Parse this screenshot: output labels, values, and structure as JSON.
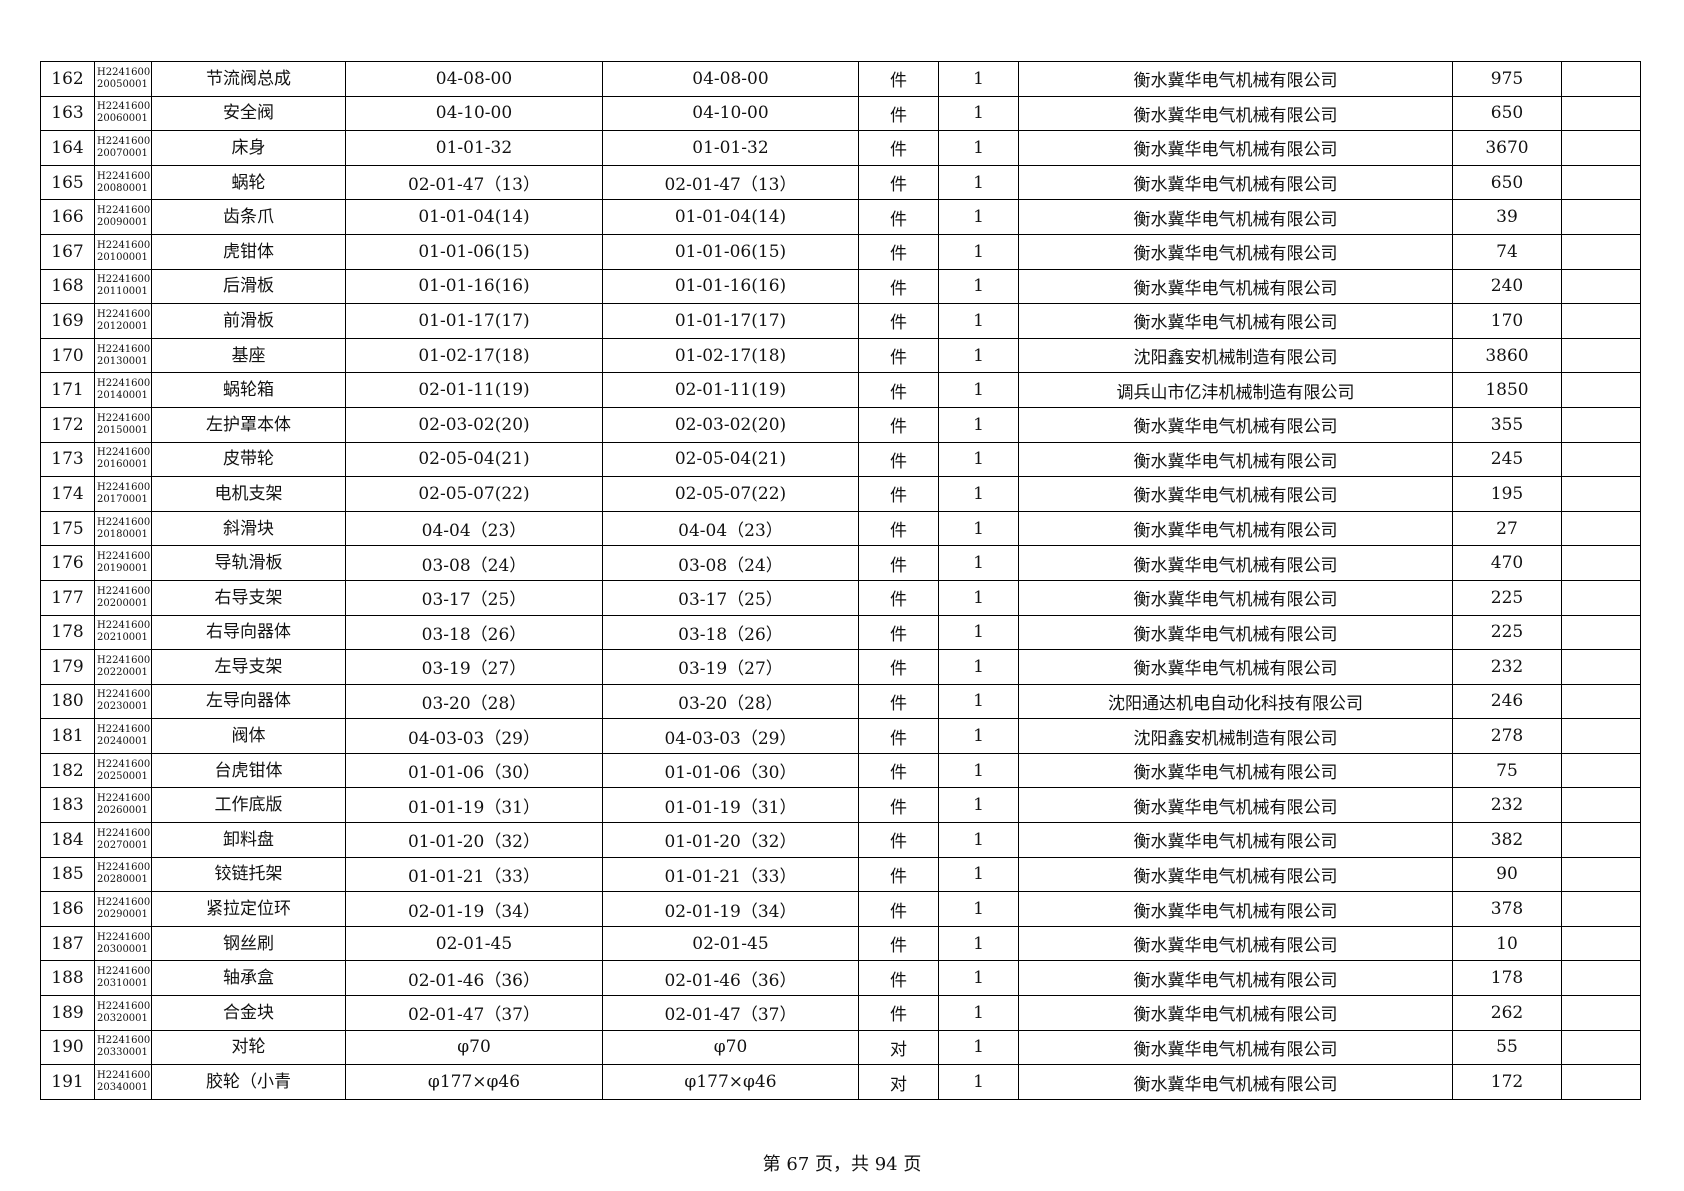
{
  "rows": [
    {
      "no": "162",
      "code": "H224160020050001",
      "name": "节流阀总成",
      "spec1": "04-08-00",
      "spec2": "04-08-00",
      "unit": "件",
      "qty": "1",
      "supplier": "衡水冀华电气机械有限公司",
      "value": "975",
      "remark": ""
    },
    {
      "no": "163",
      "code": "H224160020060001",
      "name": "安全阀",
      "spec1": "04-10-00",
      "spec2": "04-10-00",
      "unit": "件",
      "qty": "1",
      "supplier": "衡水冀华电气机械有限公司",
      "value": "650",
      "remark": ""
    },
    {
      "no": "164",
      "code": "H224160020070001",
      "name": "床身",
      "spec1": "01-01-32",
      "spec2": "01-01-32",
      "unit": "件",
      "qty": "1",
      "supplier": "衡水冀华电气机械有限公司",
      "value": "3670",
      "remark": ""
    },
    {
      "no": "165",
      "code": "H224160020080001",
      "name": "蜗轮",
      "spec1": "02-01-47（13）",
      "spec2": "02-01-47（13）",
      "unit": "件",
      "qty": "1",
      "supplier": "衡水冀华电气机械有限公司",
      "value": "650",
      "remark": ""
    },
    {
      "no": "166",
      "code": "H224160020090001",
      "name": "齿条爪",
      "spec1": "01-01-04(14)",
      "spec2": "01-01-04(14)",
      "unit": "件",
      "qty": "1",
      "supplier": "衡水冀华电气机械有限公司",
      "value": "39",
      "remark": ""
    },
    {
      "no": "167",
      "code": "H224160020100001",
      "name": "虎钳体",
      "spec1": "01-01-06(15)",
      "spec2": "01-01-06(15)",
      "unit": "件",
      "qty": "1",
      "supplier": "衡水冀华电气机械有限公司",
      "value": "74",
      "remark": ""
    },
    {
      "no": "168",
      "code": "H224160020110001",
      "name": "后滑板",
      "spec1": "01-01-16(16)",
      "spec2": "01-01-16(16)",
      "unit": "件",
      "qty": "1",
      "supplier": "衡水冀华电气机械有限公司",
      "value": "240",
      "remark": ""
    },
    {
      "no": "169",
      "code": "H224160020120001",
      "name": "前滑板",
      "spec1": "01-01-17(17)",
      "spec2": "01-01-17(17)",
      "unit": "件",
      "qty": "1",
      "supplier": "衡水冀华电气机械有限公司",
      "value": "170",
      "remark": ""
    },
    {
      "no": "170",
      "code": "H224160020130001",
      "name": "基座",
      "spec1": "01-02-17(18)",
      "spec2": "01-02-17(18)",
      "unit": "件",
      "qty": "1",
      "supplier": "沈阳鑫安机械制造有限公司",
      "value": "3860",
      "remark": ""
    },
    {
      "no": "171",
      "code": "H224160020140001",
      "name": "蜗轮箱",
      "spec1": "02-01-11(19)",
      "spec2": "02-01-11(19)",
      "unit": "件",
      "qty": "1",
      "supplier": "调兵山市亿沣机械制造有限公司",
      "value": "1850",
      "remark": ""
    },
    {
      "no": "172",
      "code": "H224160020150001",
      "name": "左护罩本体",
      "spec1": "02-03-02(20)",
      "spec2": "02-03-02(20)",
      "unit": "件",
      "qty": "1",
      "supplier": "衡水冀华电气机械有限公司",
      "value": "355",
      "remark": ""
    },
    {
      "no": "173",
      "code": "H224160020160001",
      "name": "皮带轮",
      "spec1": "02-05-04(21)",
      "spec2": "02-05-04(21)",
      "unit": "件",
      "qty": "1",
      "supplier": "衡水冀华电气机械有限公司",
      "value": "245",
      "remark": ""
    },
    {
      "no": "174",
      "code": "H224160020170001",
      "name": "电机支架",
      "spec1": "02-05-07(22)",
      "spec2": "02-05-07(22)",
      "unit": "件",
      "qty": "1",
      "supplier": "衡水冀华电气机械有限公司",
      "value": "195",
      "remark": ""
    },
    {
      "no": "175",
      "code": "H224160020180001",
      "name": "斜滑块",
      "spec1": "04-04（23）",
      "spec2": "04-04（23）",
      "unit": "件",
      "qty": "1",
      "supplier": "衡水冀华电气机械有限公司",
      "value": "27",
      "remark": ""
    },
    {
      "no": "176",
      "code": "H224160020190001",
      "name": "导轨滑板",
      "spec1": "03-08（24）",
      "spec2": "03-08（24）",
      "unit": "件",
      "qty": "1",
      "supplier": "衡水冀华电气机械有限公司",
      "value": "470",
      "remark": ""
    },
    {
      "no": "177",
      "code": "H224160020200001",
      "name": "右导支架",
      "spec1": "03-17（25）",
      "spec2": "03-17（25）",
      "unit": "件",
      "qty": "1",
      "supplier": "衡水冀华电气机械有限公司",
      "value": "225",
      "remark": ""
    },
    {
      "no": "178",
      "code": "H224160020210001",
      "name": "右导向器体",
      "spec1": "03-18（26）",
      "spec2": "03-18（26）",
      "unit": "件",
      "qty": "1",
      "supplier": "衡水冀华电气机械有限公司",
      "value": "225",
      "remark": ""
    },
    {
      "no": "179",
      "code": "H224160020220001",
      "name": "左导支架",
      "spec1": "03-19（27）",
      "spec2": "03-19（27）",
      "unit": "件",
      "qty": "1",
      "supplier": "衡水冀华电气机械有限公司",
      "value": "232",
      "remark": ""
    },
    {
      "no": "180",
      "code": "H224160020230001",
      "name": "左导向器体",
      "spec1": "03-20（28）",
      "spec2": "03-20（28）",
      "unit": "件",
      "qty": "1",
      "supplier": "沈阳通达机电自动化科技有限公司",
      "value": "246",
      "remark": ""
    },
    {
      "no": "181",
      "code": "H224160020240001",
      "name": "阀体",
      "spec1": "04-03-03（29）",
      "spec2": "04-03-03（29）",
      "unit": "件",
      "qty": "1",
      "supplier": "沈阳鑫安机械制造有限公司",
      "value": "278",
      "remark": ""
    },
    {
      "no": "182",
      "code": "H224160020250001",
      "name": "台虎钳体",
      "spec1": "01-01-06（30）",
      "spec2": "01-01-06（30）",
      "unit": "件",
      "qty": "1",
      "supplier": "衡水冀华电气机械有限公司",
      "value": "75",
      "remark": ""
    },
    {
      "no": "183",
      "code": "H224160020260001",
      "name": "工作底版",
      "spec1": "01-01-19（31）",
      "spec2": "01-01-19（31）",
      "unit": "件",
      "qty": "1",
      "supplier": "衡水冀华电气机械有限公司",
      "value": "232",
      "remark": ""
    },
    {
      "no": "184",
      "code": "H224160020270001",
      "name": "卸料盘",
      "spec1": "01-01-20（32）",
      "spec2": "01-01-20（32）",
      "unit": "件",
      "qty": "1",
      "supplier": "衡水冀华电气机械有限公司",
      "value": "382",
      "remark": ""
    },
    {
      "no": "185",
      "code": "H224160020280001",
      "name": "铰链托架",
      "spec1": "01-01-21（33）",
      "spec2": "01-01-21（33）",
      "unit": "件",
      "qty": "1",
      "supplier": "衡水冀华电气机械有限公司",
      "value": "90",
      "remark": ""
    },
    {
      "no": "186",
      "code": "H224160020290001",
      "name": "紧拉定位环",
      "spec1": "02-01-19（34）",
      "spec2": "02-01-19（34）",
      "unit": "件",
      "qty": "1",
      "supplier": "衡水冀华电气机械有限公司",
      "value": "378",
      "remark": ""
    },
    {
      "no": "187",
      "code": "H224160020300001",
      "name": "钢丝刷",
      "spec1": "02-01-45",
      "spec2": "02-01-45",
      "unit": "件",
      "qty": "1",
      "supplier": "衡水冀华电气机械有限公司",
      "value": "10",
      "remark": ""
    },
    {
      "no": "188",
      "code": "H224160020310001",
      "name": "轴承盒",
      "spec1": "02-01-46（36）",
      "spec2": "02-01-46（36）",
      "unit": "件",
      "qty": "1",
      "supplier": "衡水冀华电气机械有限公司",
      "value": "178",
      "remark": ""
    },
    {
      "no": "189",
      "code": "H224160020320001",
      "name": "合金块",
      "spec1": "02-01-47（37）",
      "spec2": "02-01-47（37）",
      "unit": "件",
      "qty": "1",
      "supplier": "衡水冀华电气机械有限公司",
      "value": "262",
      "remark": ""
    },
    {
      "no": "190",
      "code": "H224160020330001",
      "name": "对轮",
      "spec1": "φ70",
      "spec2": "φ70",
      "unit": "对",
      "qty": "1",
      "supplier": "衡水冀华电气机械有限公司",
      "value": "55",
      "remark": ""
    },
    {
      "no": "191",
      "code": "H224160020340001",
      "name": "胶轮（小青",
      "spec1": "φ177×φ46",
      "spec2": "φ177×φ46",
      "unit": "对",
      "qty": "1",
      "supplier": "衡水冀华电气机械有限公司",
      "value": "172",
      "remark": ""
    }
  ],
  "footer": {
    "text": "第 67 页，共 94 页"
  }
}
